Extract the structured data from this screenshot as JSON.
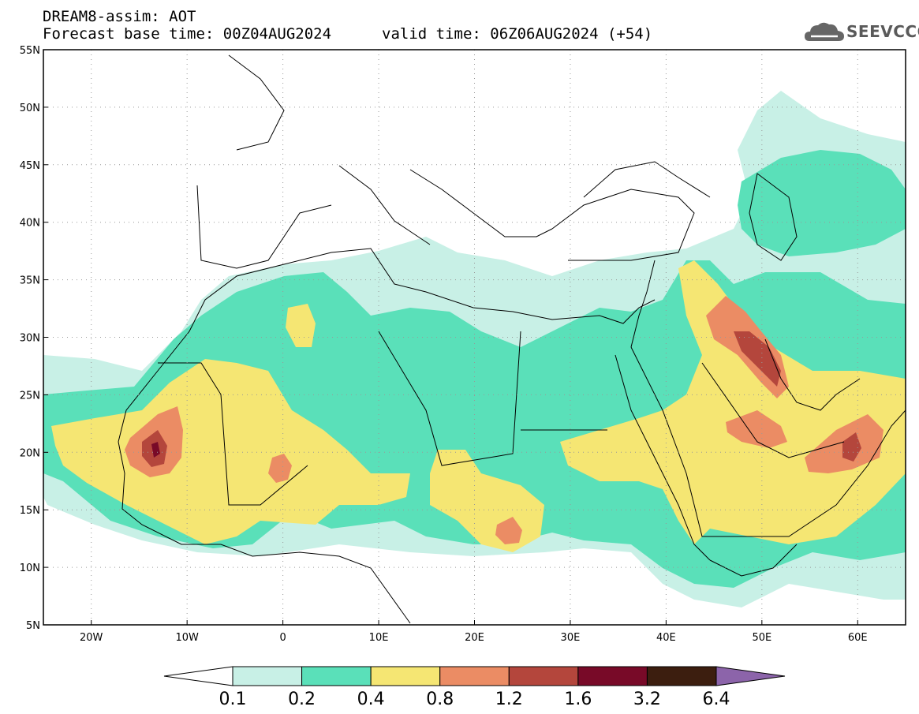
{
  "header": {
    "title": "DREAM8-assim: AOT",
    "base_time": "Forecast base time: 00Z04AUG2024",
    "valid_time": "valid time: 06Z06AUG2024 (+54)"
  },
  "logo": {
    "text": "SEEVCCC",
    "icon": "cloud-icon"
  },
  "map": {
    "lon_range": [
      -25,
      65
    ],
    "lat_range": [
      5,
      55
    ],
    "lat_ticks": [
      {
        "value": 55,
        "label": "55N"
      },
      {
        "value": 50,
        "label": "50N"
      },
      {
        "value": 45,
        "label": "45N"
      },
      {
        "value": 40,
        "label": "40N"
      },
      {
        "value": 35,
        "label": "35N"
      },
      {
        "value": 30,
        "label": "30N"
      },
      {
        "value": 25,
        "label": "25N"
      },
      {
        "value": 20,
        "label": "20N"
      },
      {
        "value": 15,
        "label": "15N"
      },
      {
        "value": 10,
        "label": "10N"
      },
      {
        "value": 5,
        "label": "5N"
      }
    ],
    "lon_ticks": [
      {
        "value": -20,
        "label": "20W"
      },
      {
        "value": -10,
        "label": "10W"
      },
      {
        "value": 0,
        "label": "0"
      },
      {
        "value": 10,
        "label": "10E"
      },
      {
        "value": 20,
        "label": "20E"
      },
      {
        "value": 30,
        "label": "30E"
      },
      {
        "value": 40,
        "label": "40E"
      },
      {
        "value": 50,
        "label": "50E"
      },
      {
        "value": 60,
        "label": "60E"
      }
    ],
    "grid": true
  },
  "colorbar": {
    "labels": [
      "0.1",
      "0.2",
      "0.4",
      "0.8",
      "1.2",
      "1.6",
      "3.2",
      "6.4"
    ],
    "colors": [
      "#ffffff",
      "#c8f0e6",
      "#5ae0b9",
      "#f5e673",
      "#eb8c64",
      "#b4463c",
      "#780a28",
      "#3c1e0f",
      "#8c64aa"
    ]
  }
}
